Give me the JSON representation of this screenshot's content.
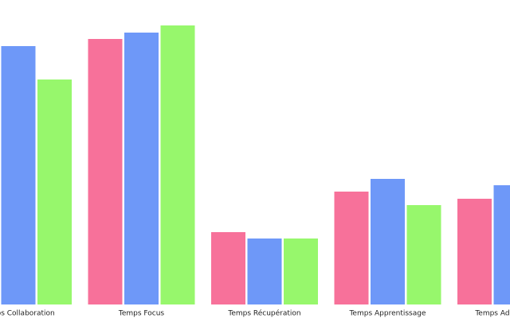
{
  "chart_data": {
    "type": "bar",
    "categories": [
      "Temps Collaboration",
      "Temps Focus",
      "Temps Récupération",
      "Temps Apprentissage",
      "Temps Administratif"
    ],
    "series": [
      {
        "color": "#f7719a",
        "values": [
          null,
          334,
          91,
          142,
          133
        ]
      },
      {
        "color": "#6e98f8",
        "values": [
          325,
          342,
          83,
          158,
          150
        ]
      },
      {
        "color": "#97f76c",
        "values": [
          283,
          351,
          83,
          125,
          null
        ]
      }
    ],
    "ylim": [
      0,
      383
    ]
  }
}
